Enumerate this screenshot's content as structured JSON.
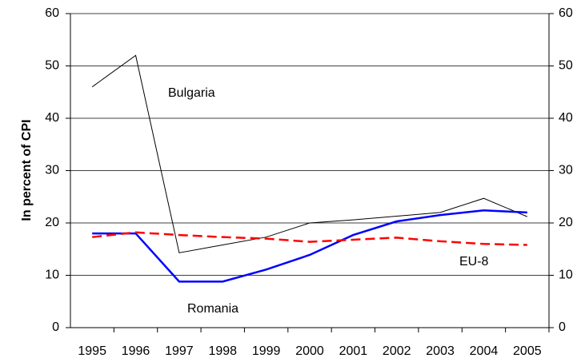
{
  "chart_data": {
    "type": "line",
    "y_label": "In percent of CPI",
    "categories": [
      "1995",
      "1996",
      "1997",
      "1998",
      "1999",
      "2000",
      "2001",
      "2002",
      "2003",
      "2004",
      "2005"
    ],
    "series": [
      {
        "name": "Bulgaria",
        "color": "#000000",
        "line_style": "solid",
        "values": [
          46,
          52,
          14.3,
          15.8,
          17.3,
          20,
          20.6,
          21.3,
          22,
          24.7,
          21.2
        ]
      },
      {
        "name": "Romania",
        "color": "#0000ff",
        "line_style": "solid",
        "values": [
          18,
          18,
          8.8,
          8.8,
          11.1,
          13.9,
          17.7,
          20.3,
          21.5,
          22.4,
          22
        ]
      },
      {
        "name": "EU-8",
        "color": "#ff0000",
        "line_style": "dashed",
        "values": [
          17.3,
          18.2,
          17.7,
          17.3,
          17,
          16.4,
          16.8,
          17.2,
          16.5,
          16,
          15.8
        ]
      }
    ],
    "ylim": [
      0,
      60
    ],
    "yticks": [
      0,
      10,
      20,
      30,
      40,
      50,
      60
    ],
    "y2lim": [
      0,
      60
    ],
    "y2ticks": [
      0,
      10,
      20,
      30,
      40,
      50,
      60
    ],
    "grid": true
  }
}
